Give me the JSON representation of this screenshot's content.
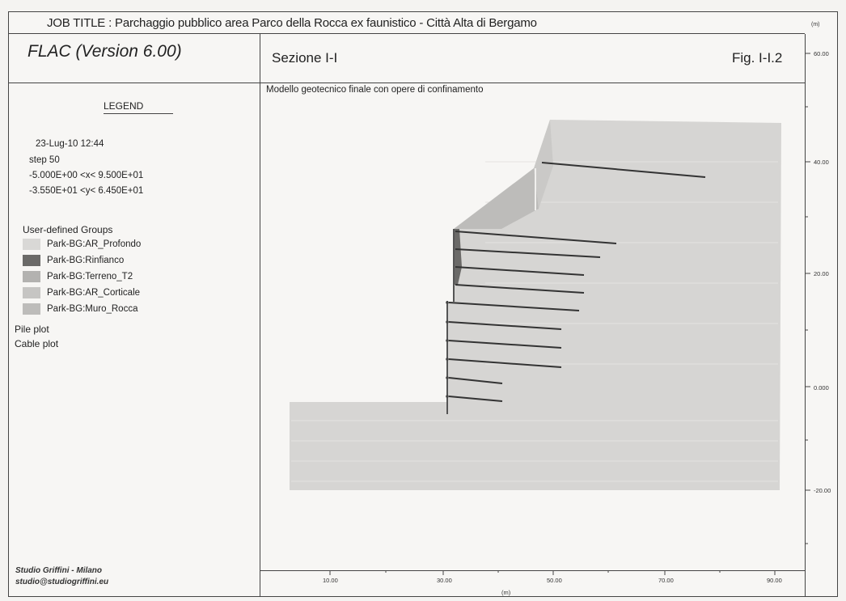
{
  "job_title": "JOB TITLE : Parchaggio pubblico area Parco della Rocca ex faunistico - Città Alta di Bergamo",
  "software": "FLAC (Version 6.00)",
  "section_title": "Sezione I-I",
  "figure_number": "Fig. I-I.2",
  "subtitle": "Modello geotecnico finale con opere di confinamento",
  "legend": {
    "title": "LEGEND",
    "date": "23-Lug-10  12:44",
    "step": "step   50",
    "x_range": "-5.000E+00 <x<  9.500E+01",
    "y_range": "-3.550E+01 <y<  6.450E+01",
    "groups_label": "User-defined Groups",
    "groups": [
      {
        "name": "Park-BG:AR_Profondo",
        "color": "#d9d8d6"
      },
      {
        "name": "Park-BG:Rinfianco",
        "color": "#6b6a68"
      },
      {
        "name": "Park-BG:Terreno_T2",
        "color": "#b3b2b0"
      },
      {
        "name": "Park-BG:AR_Corticale",
        "color": "#c6c5c3"
      },
      {
        "name": "Park-BG:Muro_Rocca",
        "color": "#bdbcba"
      }
    ],
    "pile_plot": "Pile plot",
    "cable_plot": "Cable plot"
  },
  "footer": {
    "studio": "Studio Griffini - Milano",
    "email": "studio@studiogriffini.eu"
  },
  "axes": {
    "unit_label": "(m)",
    "x_unit_label": "(m)",
    "x_ticks": [
      "10.00",
      "30.00",
      "50.00",
      "70.00",
      "90.00"
    ],
    "y_ticks": [
      "60.00",
      "40.00",
      "20.00",
      "0.000",
      "-20.00"
    ]
  }
}
